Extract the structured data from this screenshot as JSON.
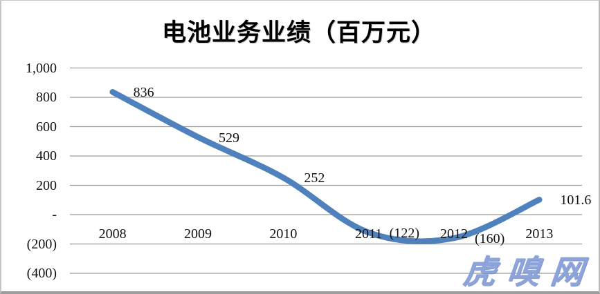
{
  "chart_data": {
    "type": "line",
    "title": "电池业务业绩（百万元）",
    "categories": [
      "2008",
      "2009",
      "2010",
      "2011",
      "2012",
      "2013"
    ],
    "values": [
      836,
      529,
      252,
      -122,
      -160,
      101.6
    ],
    "data_labels": [
      "836",
      "529",
      "252",
      "(122)",
      "(160)",
      "101.6"
    ],
    "xlabel": "",
    "ylabel": "",
    "ylim": [
      -400,
      1000
    ],
    "y_tick_step": 200,
    "y_tick_labels": [
      "1,000",
      "800",
      "600",
      "400",
      "200",
      "-",
      "(200)",
      "(400)"
    ],
    "grid": true,
    "legend": "none",
    "smoothed": true
  },
  "watermark": {
    "text": "虎嗅网"
  },
  "colors": {
    "line": "#4f81bd",
    "gridline": "#9a9a9a",
    "tick_text": "#111111",
    "title_text": "#000000",
    "watermark": "#8da4da",
    "background": "#ffffff",
    "frame_border": "#c6c6c6"
  }
}
